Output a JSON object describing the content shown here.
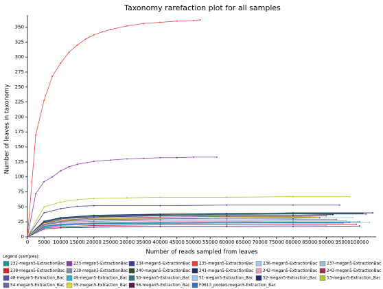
{
  "chart_data": {
    "type": "line",
    "title": "Taxonomy rarefaction plot for all samples",
    "x_label": "Number of reads sampled from leaves",
    "y_label": "Number of leaves in taxonomy",
    "legend_title": "Legend (samples):",
    "xlim": [
      0,
      105000
    ],
    "ylim": [
      0,
      370
    ],
    "xticks": [
      0,
      5000,
      10000,
      15000,
      20000,
      25000,
      30000,
      35000,
      40000,
      45000,
      50000,
      55000,
      60000,
      65000,
      70000,
      75000,
      80000,
      85000,
      90000,
      95000,
      100000
    ],
    "yticks": [
      0,
      25,
      50,
      75,
      100,
      125,
      150,
      175,
      200,
      225,
      250,
      275,
      300,
      325,
      350
    ],
    "grid": false,
    "series": [
      {
        "name": "232-megan5-ExtractionBac",
        "color": "#1f9090",
        "x": [
          0,
          5000,
          10000,
          20000,
          40000,
          60000,
          80000,
          100000
        ],
        "values": [
          0,
          18,
          21,
          23,
          24,
          25,
          25,
          25
        ]
      },
      {
        "name": "233-megan5-ExtractionBac",
        "color": "#8e3ba8",
        "x": [
          0,
          2500,
          5000,
          7500,
          10000,
          12500,
          15000,
          20000,
          25000,
          30000,
          35000,
          40000,
          45000,
          50000,
          57000
        ],
        "values": [
          0,
          72,
          92,
          100,
          110,
          117,
          121,
          126,
          128,
          130,
          131,
          132,
          132,
          133,
          133
        ]
      },
      {
        "name": "234-megan5-ExtractionBac",
        "color": "#3a3aa0",
        "x": [
          0,
          5000,
          10000,
          15000,
          20000,
          40000,
          60000,
          80000,
          94000
        ],
        "values": [
          0,
          40,
          47,
          51,
          52,
          52,
          53,
          53,
          53
        ]
      },
      {
        "name": "235-megan5-ExtractionBac",
        "color": "#e8453c",
        "x": [
          0,
          2500,
          5000,
          7500,
          10000,
          12500,
          15000,
          17500,
          20000,
          22500,
          25000,
          30000,
          35000,
          40000,
          45000,
          50000,
          52000
        ],
        "values": [
          0,
          170,
          228,
          268,
          290,
          308,
          320,
          330,
          337,
          342,
          346,
          352,
          356,
          358,
          360,
          361,
          362
        ]
      },
      {
        "name": "236-megan5-ExtractionBac",
        "color": "#a8c8e8",
        "x": [
          0,
          5000,
          10000,
          20000,
          40000,
          60000,
          80000,
          98000
        ],
        "values": [
          0,
          20,
          25,
          28,
          30,
          31,
          32,
          32
        ]
      },
      {
        "name": "237-megan5-ExtractionBac",
        "color": "#9fb8d0",
        "x": [
          0,
          5000,
          10000,
          20000,
          40000,
          60000,
          80000,
          103000
        ],
        "values": [
          0,
          17,
          20,
          22,
          23,
          24,
          24,
          24
        ]
      },
      {
        "name": "238-megan5-ExtractionBac",
        "color": "#d82020",
        "x": [
          0,
          5000,
          10000,
          20000,
          40000,
          60000,
          80000,
          99000
        ],
        "values": [
          0,
          15,
          17,
          19,
          20,
          20,
          21,
          21
        ]
      },
      {
        "name": "239-megan5-ExtractionBac",
        "color": "#7f8fa0",
        "x": [
          0,
          5000,
          10000,
          20000,
          40000,
          60000,
          80000,
          85000
        ],
        "values": [
          0,
          22,
          26,
          29,
          31,
          32,
          32,
          33
        ]
      },
      {
        "name": "240-megan5-ExtractionBac",
        "color": "#2f4f2f",
        "x": [
          0,
          5000,
          10000,
          20000,
          40000,
          60000,
          80000,
          101000
        ],
        "values": [
          0,
          26,
          31,
          35,
          37,
          38,
          39,
          39
        ]
      },
      {
        "name": "241-megan5-ExtractionBac",
        "color": "#1f2f5f",
        "x": [
          0,
          5000,
          10000,
          20000,
          40000,
          60000,
          80000,
          92000
        ],
        "values": [
          0,
          24,
          30,
          33,
          35,
          36,
          36,
          37
        ]
      },
      {
        "name": "242-megan5-ExtractionBac",
        "color": "#e8a0c0",
        "x": [
          0,
          5000,
          10000,
          20000,
          40000,
          60000,
          80000,
          96000
        ],
        "values": [
          0,
          19,
          22,
          24,
          26,
          26,
          27,
          27
        ]
      },
      {
        "name": "243-megan5-ExtractionBac",
        "color": "#a0304a",
        "x": [
          0,
          5000,
          10000,
          20000,
          40000,
          60000,
          80000,
          90000
        ],
        "values": [
          0,
          23,
          28,
          31,
          33,
          34,
          34,
          35
        ]
      },
      {
        "name": "48-megan5-Extraction_Bac",
        "color": "#5050b0",
        "x": [
          0,
          5000,
          10000,
          20000,
          40000,
          60000,
          80000,
          88000
        ],
        "values": [
          0,
          21,
          26,
          29,
          30,
          31,
          31,
          32
        ]
      },
      {
        "name": "49-megan5-Extraction_Bac",
        "color": "#30b0d0",
        "x": [
          0,
          5000,
          10000,
          20000,
          40000,
          60000,
          80000,
          95000
        ],
        "values": [
          0,
          16,
          19,
          21,
          22,
          23,
          23,
          23
        ]
      },
      {
        "name": "50-megan5-Extraction_Bac",
        "color": "#2f6f8f",
        "x": [
          0,
          5000,
          10000,
          20000,
          40000,
          60000,
          80000,
          102000
        ],
        "values": [
          0,
          25,
          30,
          34,
          36,
          37,
          38,
          38
        ]
      },
      {
        "name": "51-megan5-Extraction_Bac",
        "color": "#a0c8f8",
        "x": [
          0,
          5000,
          10000,
          20000,
          40000,
          60000,
          80000,
          90000
        ],
        "values": [
          0,
          14,
          16,
          17,
          18,
          18,
          19,
          19
        ]
      },
      {
        "name": "52-megan5-Extraction_Bac",
        "color": "#1a2a6a",
        "x": [
          0,
          5000,
          10000,
          20000,
          40000,
          60000,
          80000,
          104000
        ],
        "values": [
          0,
          26,
          32,
          36,
          38,
          39,
          40,
          40
        ]
      },
      {
        "name": "53-megan5-Extraction_Bac",
        "color": "#a8c82a",
        "x": [
          0,
          5000,
          10000,
          15000,
          20000,
          30000,
          40000,
          60000,
          80000,
          97000
        ],
        "values": [
          0,
          50,
          58,
          62,
          64,
          65,
          66,
          66,
          67,
          67
        ]
      },
      {
        "name": "54-megan5-Extraction_Bac",
        "color": "#6a6aa8",
        "x": [
          0,
          5000,
          10000,
          20000,
          40000,
          60000,
          80000,
          93000
        ],
        "values": [
          0,
          20,
          24,
          26,
          28,
          28,
          29,
          29
        ]
      },
      {
        "name": "55-megan5-Extraction_Bac",
        "color": "#e0d840",
        "x": [
          0,
          5000,
          10000,
          20000,
          40000,
          60000,
          80000,
          87000
        ],
        "values": [
          0,
          22,
          27,
          30,
          31,
          32,
          33,
          33
        ]
      },
      {
        "name": "56-megan5-Extraction_Bac",
        "color": "#601850",
        "x": [
          0,
          5000,
          10000,
          20000,
          40000,
          60000,
          80000,
          100000
        ],
        "values": [
          0,
          13,
          15,
          16,
          17,
          17,
          17,
          18
        ]
      },
      {
        "name": "F0613_pooled-megan5-Extraction_Bac",
        "color": "#3a70c8",
        "x": [
          0,
          5000,
          10000,
          20000,
          40000,
          60000,
          80000,
          97000
        ],
        "values": [
          0,
          17,
          20,
          22,
          23,
          23,
          24,
          24
        ]
      }
    ]
  }
}
